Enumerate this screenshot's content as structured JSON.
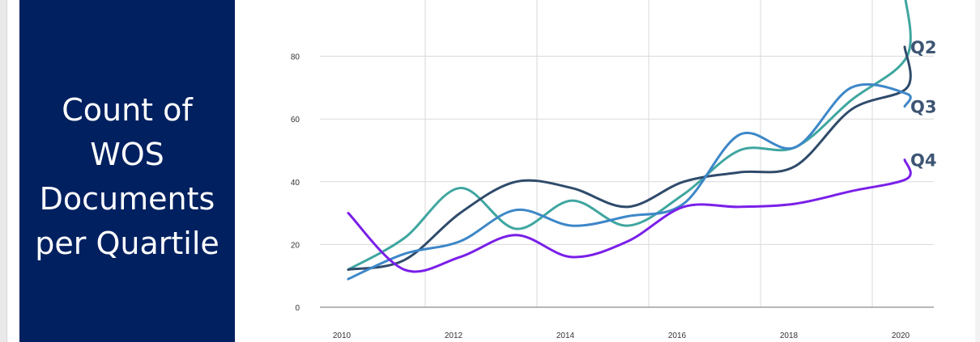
{
  "panel": {
    "title_lines": [
      "Count of",
      "WOS",
      "Documents",
      "per Quartile"
    ],
    "background": "#002060",
    "text_color": "#ffffff"
  },
  "chart_data": {
    "type": "line",
    "x": [
      2010,
      2011,
      2012,
      2013,
      2014,
      2015,
      2016,
      2017,
      2018,
      2019,
      2020,
      2021
    ],
    "series": [
      {
        "name": "",
        "color": "#3fa6a0",
        "values": [
          12,
          22,
          38,
          25,
          34,
          26,
          36,
          50,
          51,
          66,
          80,
          100
        ]
      },
      {
        "name": "Q2",
        "color": "#2f4b6b",
        "values": [
          12,
          15,
          30,
          40,
          38,
          32,
          40,
          43,
          45,
          63,
          70,
          83
        ]
      },
      {
        "name": "Q3",
        "color": "#3d87c8",
        "values": [
          9,
          17,
          21,
          31,
          26,
          29,
          33,
          55,
          51,
          70,
          68,
          64
        ]
      },
      {
        "name": "Q4",
        "color": "#7a1fe8",
        "values": [
          30,
          12,
          16,
          23,
          16,
          21,
          32,
          32,
          33,
          37,
          41,
          47
        ]
      }
    ],
    "x_ticks": [
      2010,
      2012,
      2014,
      2016,
      2018,
      2020
    ],
    "y_ticks": [
      0,
      20,
      40,
      60,
      80
    ],
    "xlim": [
      2010,
      2021
    ],
    "ylim": [
      0,
      100
    ],
    "grid": true,
    "title": "",
    "xlabel": "",
    "ylabel": ""
  }
}
